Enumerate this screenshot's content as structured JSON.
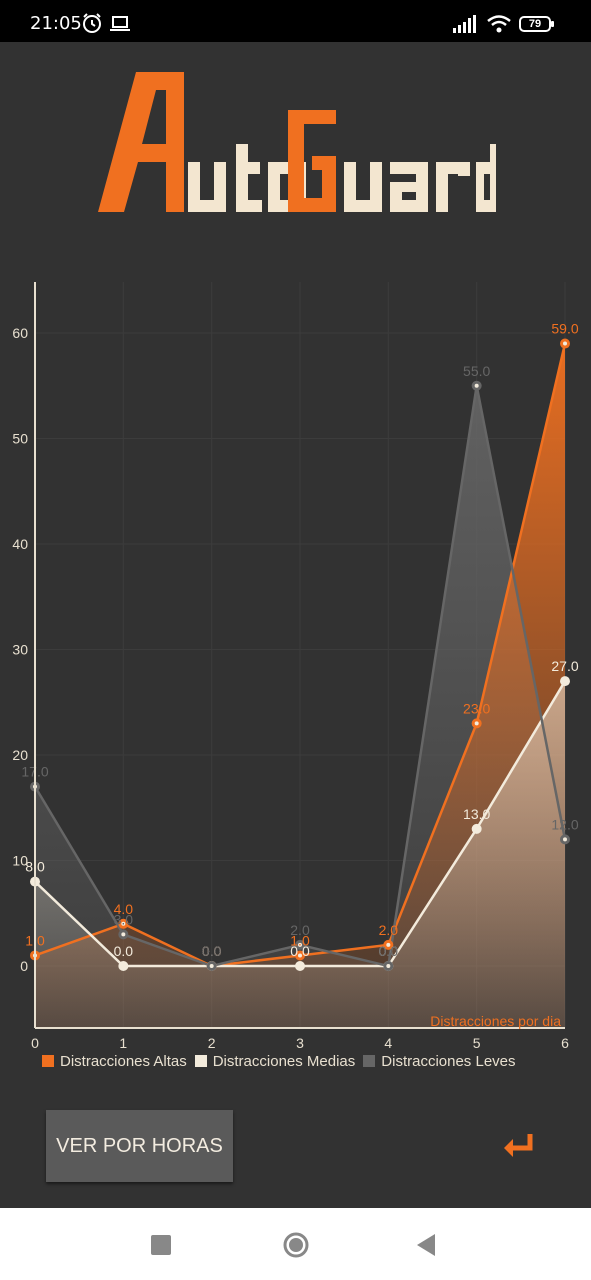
{
  "status_bar": {
    "time": "21:05",
    "battery": "79"
  },
  "app": {
    "logo_text": "AutoGuard"
  },
  "chart_data": {
    "type": "line",
    "x": [
      0,
      1,
      2,
      3,
      4,
      5,
      6
    ],
    "series": [
      {
        "name": "Distracciones Altas",
        "color": "#f07020",
        "values": [
          1.0,
          4.0,
          0.0,
          1.0,
          2.0,
          23.0,
          59.0
        ]
      },
      {
        "name": "Distracciones Medias",
        "color": "#f3ebdc",
        "values": [
          8.0,
          0.0,
          0.0,
          0.0,
          0.0,
          13.0,
          27.0
        ]
      },
      {
        "name": "Distracciones Leves",
        "color": "#666666",
        "values": [
          17.0,
          3.0,
          0.0,
          2.0,
          0.0,
          55.0,
          12.0
        ]
      }
    ],
    "xlabel": "Distracciones por dia",
    "xticks": [
      "0",
      "1",
      "2",
      "3",
      "4",
      "5",
      "6"
    ],
    "yticks": [
      "0",
      "10",
      "20",
      "30",
      "40",
      "50",
      "60"
    ],
    "ylim": [
      -6,
      65
    ],
    "xlim": [
      0,
      6
    ],
    "grid": true,
    "legend_position": "bottom-left"
  },
  "buttons": {
    "ver_por_horas": "VER POR HORAS"
  }
}
